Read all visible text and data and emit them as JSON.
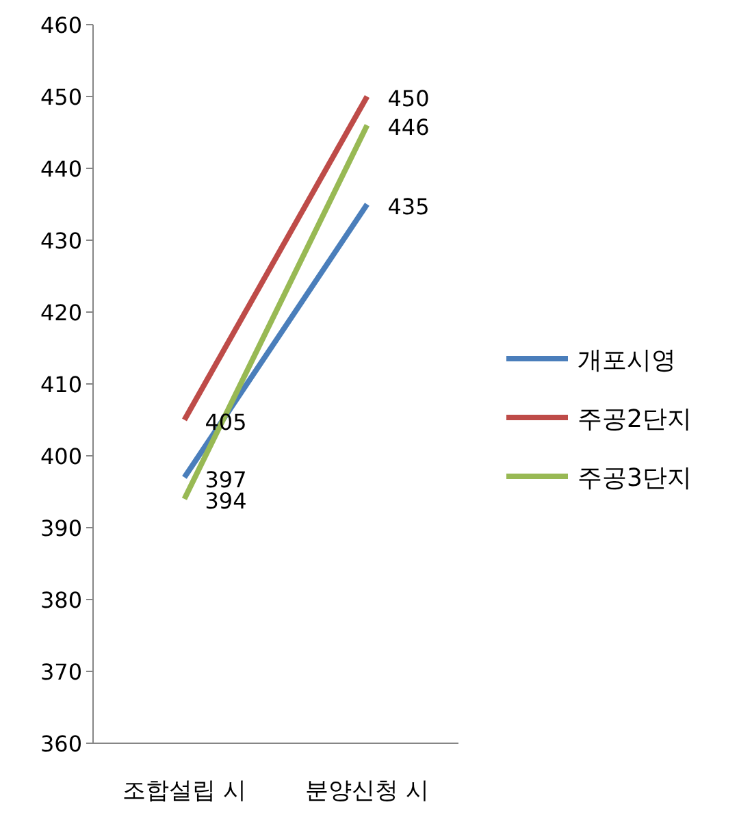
{
  "chart_data": {
    "type": "line",
    "categories": [
      "조합설립 시",
      "분양신청 시"
    ],
    "series": [
      {
        "name": "개포시영",
        "color": "#4a7ebb",
        "values": [
          397,
          435
        ]
      },
      {
        "name": "주공2단지",
        "color": "#be4b48",
        "values": [
          405,
          450
        ]
      },
      {
        "name": "주공3단지",
        "color": "#98b954",
        "values": [
          394,
          446
        ]
      }
    ],
    "ylim": [
      360,
      460
    ],
    "yticks": [
      360,
      370,
      380,
      390,
      400,
      410,
      420,
      430,
      440,
      450,
      460
    ],
    "data_labels": true,
    "legend": "right",
    "grid": false,
    "marker": "none"
  }
}
